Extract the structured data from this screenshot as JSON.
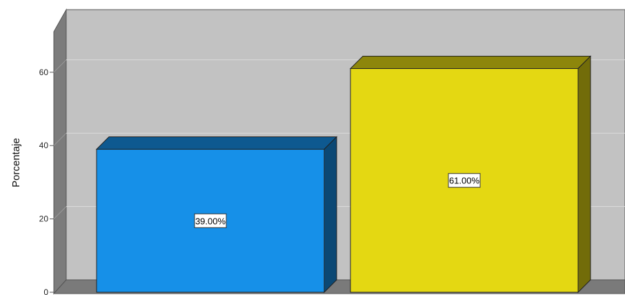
{
  "chart_data": {
    "type": "bar",
    "style": "3d",
    "ylabel": "Porcentaje",
    "ylim": [
      0,
      70
    ],
    "yticks": [
      0,
      20,
      40,
      60
    ],
    "grid": true,
    "categories": [
      "",
      ""
    ],
    "values": [
      39.0,
      61.0
    ],
    "data_labels": [
      "39.00%",
      "61.00%"
    ],
    "colors": [
      "#1690e8",
      "#e4d812"
    ],
    "wall_color": "#c2c2c2",
    "gridline_color": "#dcdcdc"
  }
}
